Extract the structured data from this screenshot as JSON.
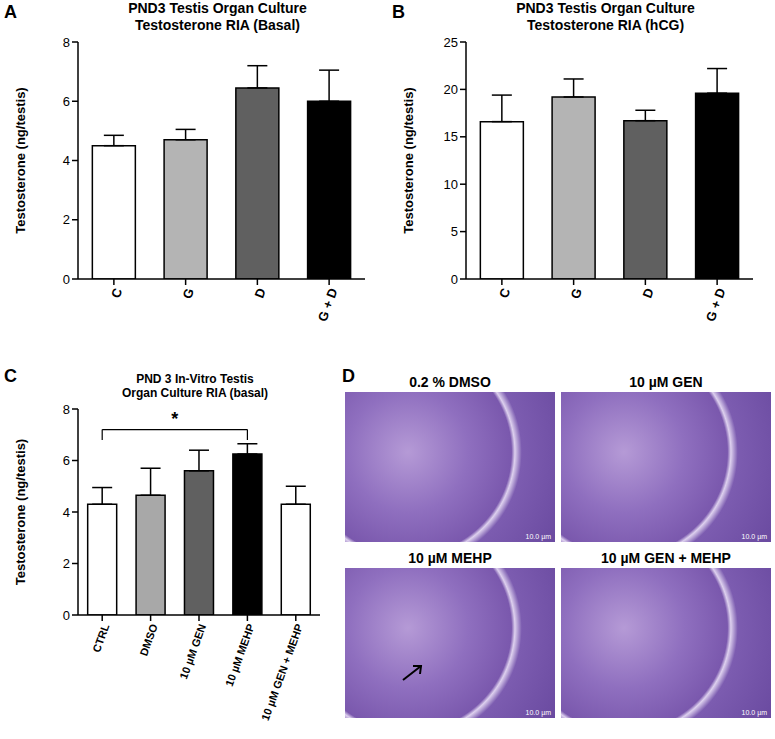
{
  "chart_data": [
    {
      "type": "bar",
      "title": "PND3 Testis Organ Culture\nTestosterone RIA (Basal)",
      "categories": [
        "C",
        "G",
        "D",
        "G + D"
      ],
      "values": [
        4.5,
        4.7,
        6.45,
        6.0
      ],
      "errors": [
        0.35,
        0.35,
        0.75,
        1.05
      ],
      "colors": [
        "#ffffff",
        "#b4b4b4",
        "#606060",
        "#000000"
      ],
      "y_label": "Testosterone (ng/testis)",
      "ylim": [
        0,
        8
      ],
      "yticks": [
        0,
        2,
        4,
        6,
        8
      ]
    },
    {
      "type": "bar",
      "title": "PND3 Testis Organ Culture\nTestosterone RIA (hCG)",
      "categories": [
        "C",
        "G",
        "D",
        "G + D"
      ],
      "values": [
        16.6,
        19.2,
        16.7,
        19.6
      ],
      "errors": [
        2.8,
        1.9,
        1.1,
        2.6
      ],
      "colors": [
        "#ffffff",
        "#b4b4b4",
        "#606060",
        "#000000"
      ],
      "y_label": "Testosterone (ng/testis)",
      "ylim": [
        0,
        25
      ],
      "yticks": [
        0,
        5,
        10,
        15,
        20,
        25
      ]
    },
    {
      "type": "bar",
      "title": "PND 3 In-Vitro Testis\nOrgan Culture RIA (basal)",
      "categories": [
        "CTRL",
        "DMSO",
        "10 µM GEN",
        "10 µM MEHP",
        "10 µM GEN + MEHP"
      ],
      "values": [
        4.3,
        4.65,
        5.6,
        6.25,
        4.3
      ],
      "errors": [
        0.65,
        1.05,
        0.8,
        0.4,
        0.7
      ],
      "colors": [
        "#ffffff",
        "#a8a8a8",
        "#606060",
        "#000000",
        "#ffffff"
      ],
      "y_label": "Testosterone (ng/testis)",
      "ylim": [
        0,
        8
      ],
      "yticks": [
        0,
        2,
        4,
        6,
        8
      ],
      "annotations": [
        {
          "text": "*",
          "x": [
            "CTRL",
            "10 µM MEHP"
          ]
        }
      ]
    }
  ],
  "panel_labels": [
    "A",
    "B",
    "C",
    "D"
  ],
  "images": {
    "titles": [
      "0.2 % DMSO",
      "10 µM GEN",
      "10 µM MEHP",
      "10 µM GEN + MEHP"
    ],
    "scale_bar": "10.0 µm"
  }
}
